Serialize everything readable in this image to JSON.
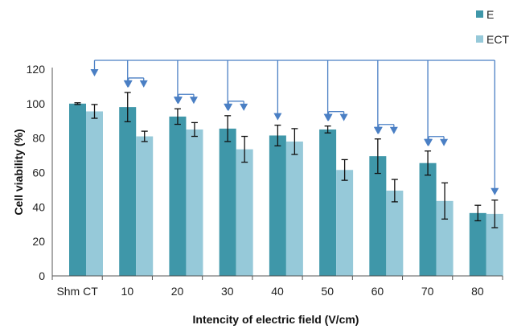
{
  "chart_data": {
    "type": "bar",
    "title": "",
    "xlabel": "Intencity of electric field (V/cm)",
    "ylabel": "Cell viability (%)",
    "categories": [
      "Shm CT",
      "10",
      "20",
      "30",
      "40",
      "50",
      "60",
      "70",
      "80"
    ],
    "ylim": [
      0,
      120
    ],
    "yticks": [
      0,
      20,
      40,
      60,
      80,
      100,
      120
    ],
    "grid": false,
    "legend_position": "top-right",
    "series": [
      {
        "name": "E",
        "color": "#3f97a9",
        "values": [
          100,
          98,
          92.5,
          85.5,
          81.5,
          85,
          69.5,
          65.5,
          36.5
        ],
        "errors": [
          0.5,
          8.5,
          4.5,
          7.5,
          6,
          2,
          10,
          7,
          4.5
        ]
      },
      {
        "name": "ECT",
        "color": "#96c9d9",
        "values": [
          95.5,
          81,
          85,
          73.5,
          78,
          61.5,
          49.5,
          43.5,
          36
        ],
        "errors": [
          4,
          3,
          4,
          7.5,
          7.5,
          6,
          6.5,
          10.5,
          8
        ]
      }
    ],
    "comparisons": {
      "reference": "Shm CT",
      "vs_reference": [
        "10",
        "20",
        "30",
        "40",
        "50",
        "60",
        "70",
        "80"
      ],
      "within_group_pairs": [
        "10",
        "20",
        "30",
        "50",
        "60",
        "70"
      ]
    }
  }
}
